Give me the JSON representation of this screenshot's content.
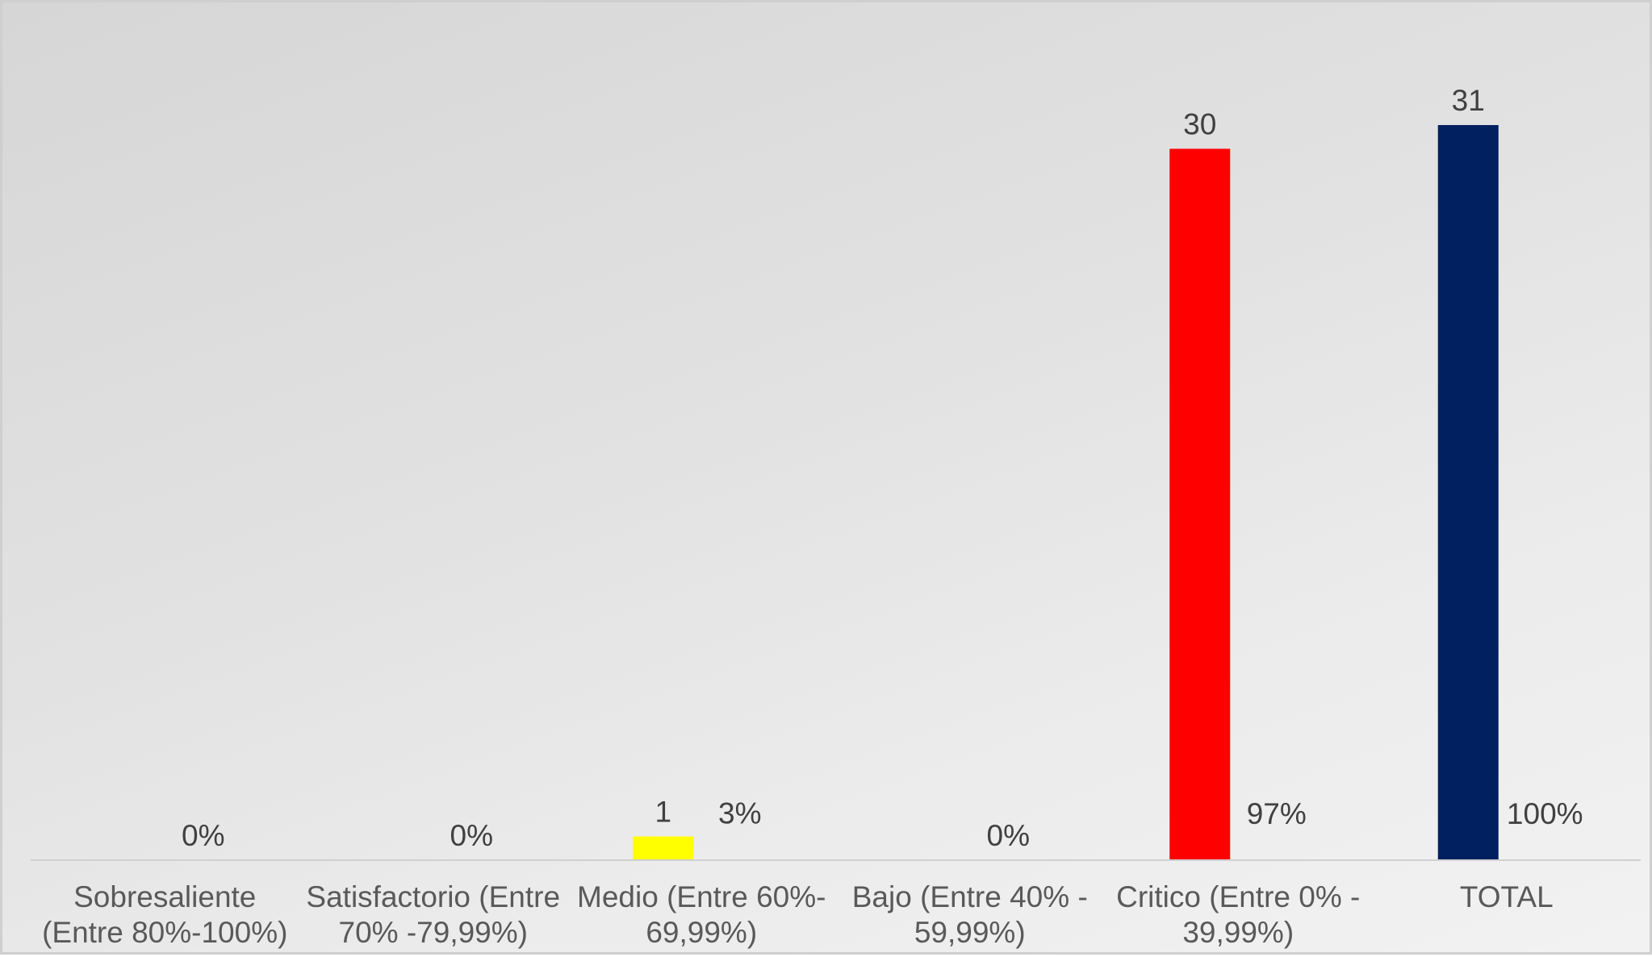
{
  "chart_data": {
    "type": "bar",
    "title": "",
    "xlabel": "",
    "ylabel": "",
    "categories": [
      [
        "Sobresaliente",
        "(Entre 80%-100%)"
      ],
      [
        "Satisfactorio (Entre",
        "70% -79,99%)"
      ],
      [
        "Medio (Entre 60%-",
        "69,99%)"
      ],
      [
        "Bajo (Entre 40% -",
        "59,99%)"
      ],
      [
        "Critico (Entre 0% -",
        "39,99%)"
      ],
      [
        "TOTAL"
      ]
    ],
    "series": [
      {
        "values": [
          null,
          null,
          1,
          null,
          30,
          31
        ],
        "value_labels": [
          "",
          "",
          "1",
          "",
          "30",
          "31"
        ],
        "colors": [
          "#c00000",
          "#00b050",
          "#ffff00",
          "#ffc000",
          "#ff0000",
          "#002060"
        ]
      },
      {
        "values": [
          0,
          0,
          3,
          0,
          97,
          100
        ],
        "value_labels": [
          "0%",
          "0%",
          "3%",
          "0%",
          "97%",
          "100%"
        ]
      }
    ],
    "ylim": [
      0,
      31
    ],
    "grid": false,
    "legend": "none"
  }
}
